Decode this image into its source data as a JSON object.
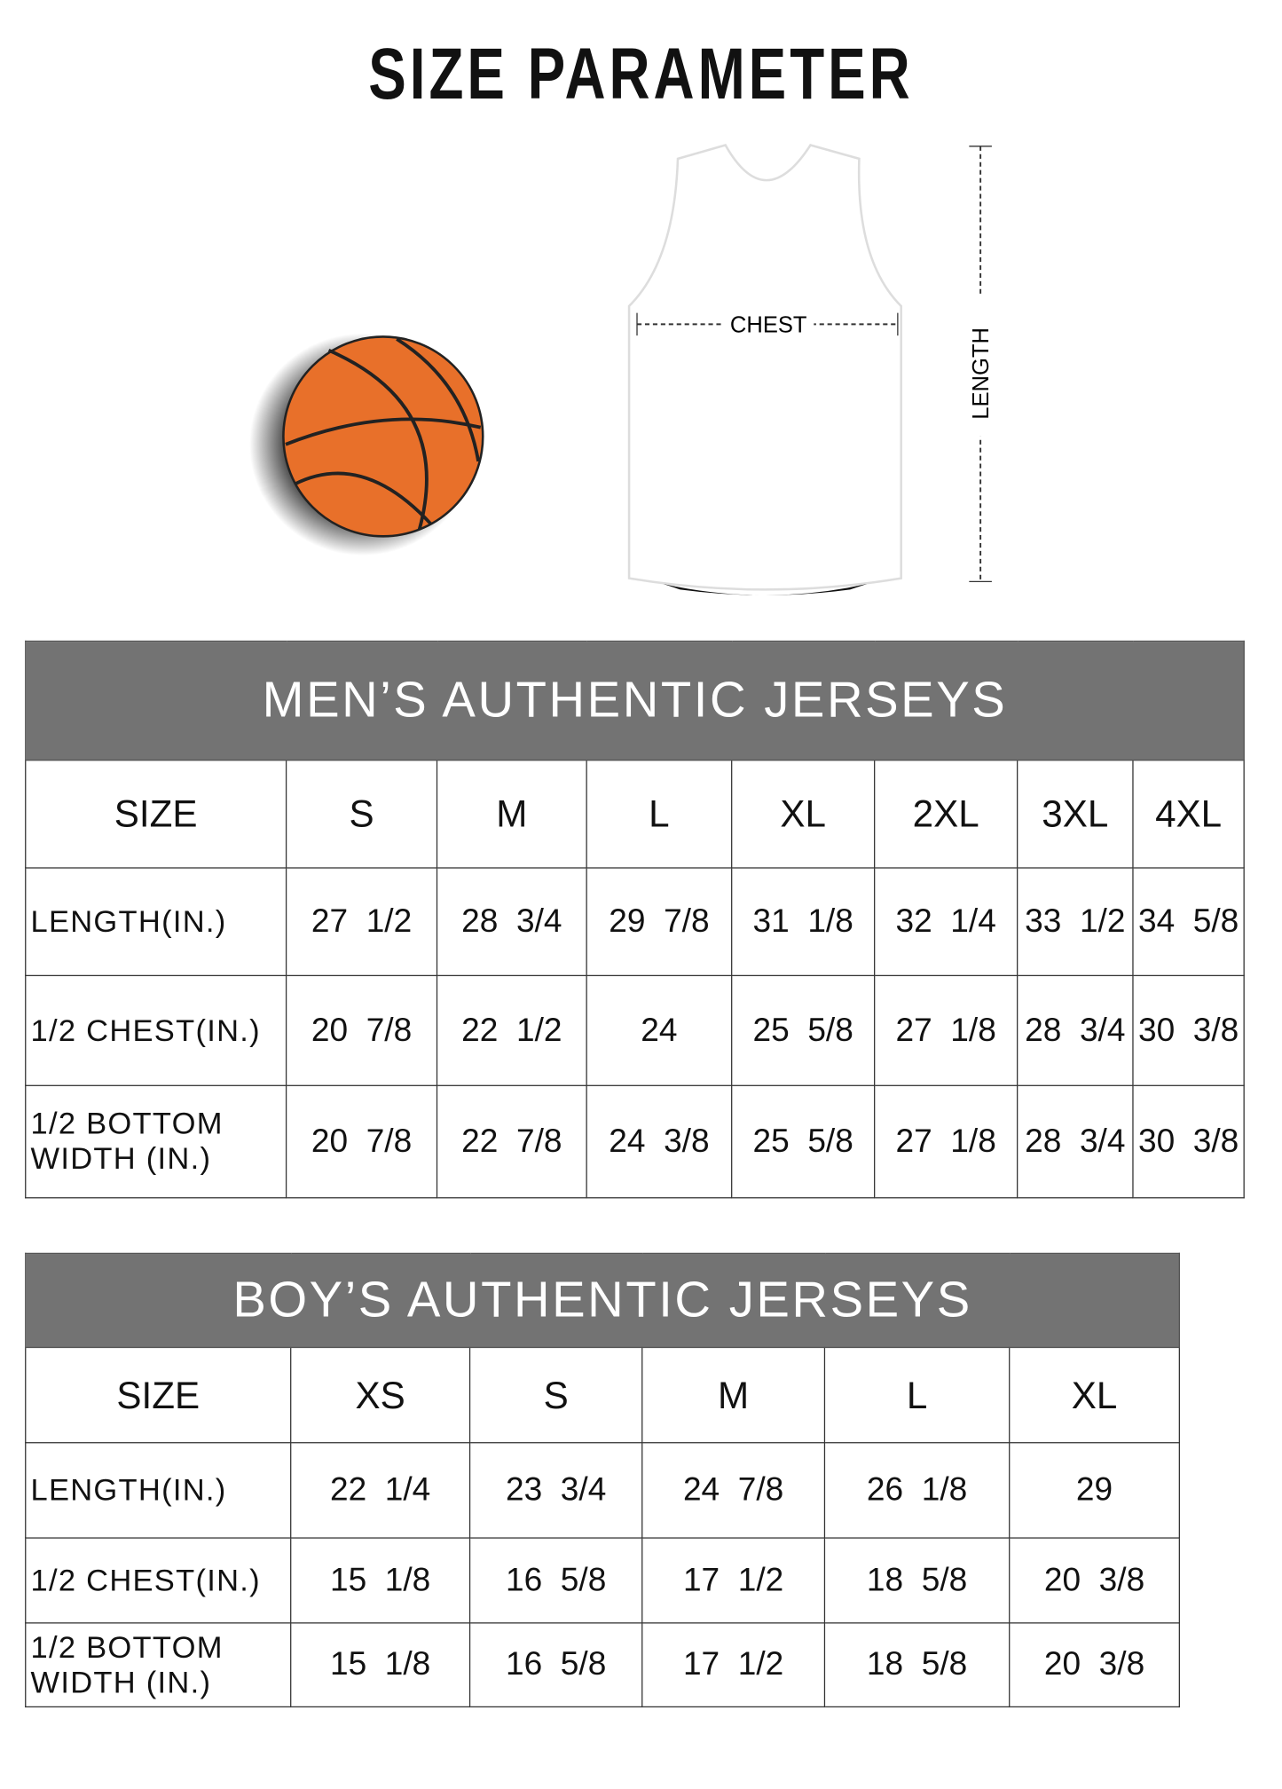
{
  "title": "SIZE PARAMETER",
  "diagram": {
    "chest_label": "CHEST",
    "length_label": "LENGTH",
    "ball_color": "#e8702a",
    "header_color": "#737373"
  },
  "mens": {
    "title": "MEN’S AUTHENTIC JERSEYS",
    "columns": [
      "SIZE",
      "S",
      "M",
      "L",
      "XL",
      "2XL",
      "3XL",
      "4XL"
    ],
    "rows": [
      {
        "label": "LENGTH(IN.)",
        "values": [
          "27  1/2",
          "28  3/4",
          "29  7/8",
          "31  1/8",
          "32  1/4",
          "33  1/2",
          "34  5/8"
        ]
      },
      {
        "label": "1/2 CHEST(IN.)",
        "values": [
          "20  7/8",
          "22  1/2",
          "24",
          "25  5/8",
          "27  1/8",
          "28  3/4",
          "30  3/8"
        ]
      },
      {
        "label": "1/2 BOTTOM WIDTH  (IN.)",
        "values": [
          "20  7/8",
          "22  7/8",
          "24  3/8",
          "25  5/8",
          "27  1/8",
          "28  3/4",
          "30  3/8"
        ]
      }
    ]
  },
  "boys": {
    "title": "BOY’S AUTHENTIC JERSEYS",
    "columns": [
      "SIZE",
      "XS",
      "S",
      "M",
      "L",
      "XL"
    ],
    "rows": [
      {
        "label": "LENGTH(IN.)",
        "values": [
          "22  1/4",
          "23  3/4",
          "24  7/8",
          "26  1/8",
          "29"
        ]
      },
      {
        "label": "1/2 CHEST(IN.)",
        "values": [
          "15  1/8",
          "16  5/8",
          "17  1/2",
          "18  5/8",
          "20  3/8"
        ]
      },
      {
        "label": "1/2 BOTTOM WIDTH  (IN.)",
        "values": [
          "15  1/8",
          "16  5/8",
          "17  1/2",
          "18  5/8",
          "20  3/8"
        ]
      }
    ]
  }
}
